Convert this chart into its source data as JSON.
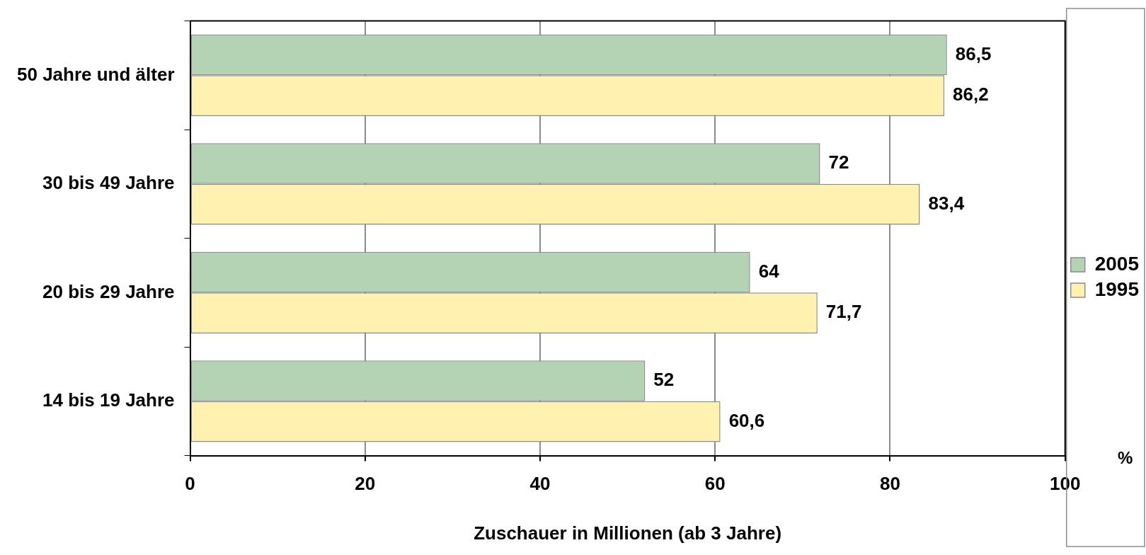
{
  "chart_data": {
    "type": "bar",
    "orientation": "horizontal",
    "xlabel": "Zuschauer in Millionen (ab 3 Jahre)",
    "annotations": [
      "%"
    ],
    "categories": [
      "50 Jahre und älter",
      "30 bis 49 Jahre",
      "20 bis 29 Jahre",
      "14 bis 19 Jahre"
    ],
    "series": [
      {
        "name": "2005",
        "color": "#b3d3b4",
        "values": [
          86.5,
          72,
          64,
          52
        ],
        "value_labels": [
          "86,5",
          "72",
          "64",
          "52"
        ]
      },
      {
        "name": "1995",
        "color": "#fff2b0",
        "values": [
          86.2,
          83.4,
          71.7,
          60.6
        ],
        "value_labels": [
          "86,2",
          "83,4",
          "71,7",
          "60,6"
        ]
      }
    ],
    "xlim": [
      0,
      100
    ],
    "xticks": [
      0,
      20,
      40,
      60,
      80,
      100
    ],
    "grid": "x",
    "legend": "right"
  }
}
